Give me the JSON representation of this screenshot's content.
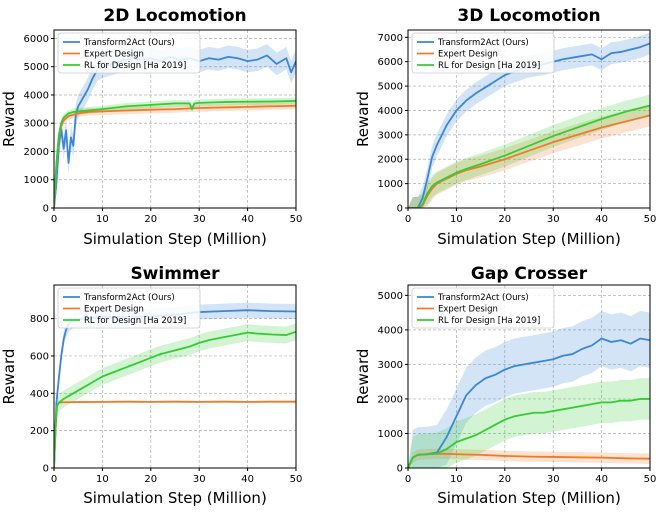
{
  "chart_data": [
    {
      "type": "line",
      "title": "2D Locomotion",
      "xlabel": "Simulation Step (Million)",
      "ylabel": "Reward",
      "xlim": [
        0,
        50
      ],
      "ylim": [
        0,
        6300
      ],
      "xticks": [
        0,
        10,
        20,
        30,
        40,
        50
      ],
      "yticks": [
        0,
        1000,
        2000,
        3000,
        4000,
        5000,
        6000
      ],
      "grid": true,
      "legend_position": "top-left",
      "series": [
        {
          "name": "Transform2Act (Ours)",
          "color": "#3a86d9",
          "band": 400,
          "x": [
            0,
            0.5,
            1,
            1.5,
            2,
            2.5,
            3,
            3.5,
            4,
            4.5,
            5,
            6,
            7,
            8,
            9,
            10,
            12,
            14,
            16,
            18,
            20,
            22,
            24,
            26,
            28,
            30,
            32,
            34,
            36,
            38,
            40,
            42,
            44,
            46,
            48,
            49,
            50
          ],
          "y": [
            0,
            900,
            2200,
            2800,
            2100,
            2750,
            1600,
            2500,
            2200,
            3300,
            3600,
            3900,
            4200,
            4600,
            4900,
            5000,
            5100,
            5200,
            5300,
            5250,
            5300,
            5200,
            5350,
            5250,
            5300,
            5200,
            5300,
            5250,
            5350,
            5300,
            5200,
            5250,
            5400,
            5100,
            5300,
            4800,
            5200
          ]
        },
        {
          "name": "Expert Design",
          "color": "#f07a2a",
          "band": 130,
          "x": [
            0,
            0.5,
            1,
            1.5,
            2,
            3,
            4,
            5,
            7,
            10,
            15,
            20,
            25,
            30,
            35,
            40,
            45,
            50
          ],
          "y": [
            0,
            1500,
            2500,
            2900,
            3100,
            3250,
            3300,
            3350,
            3400,
            3420,
            3450,
            3480,
            3500,
            3540,
            3560,
            3580,
            3600,
            3620
          ]
        },
        {
          "name": "RL for Design [Ha 2019]",
          "color": "#33cc33",
          "band": 120,
          "x": [
            0,
            0.5,
            1,
            1.5,
            2,
            3,
            4,
            5,
            7,
            10,
            15,
            20,
            25,
            28,
            28.5,
            29,
            30,
            35,
            40,
            45,
            50
          ],
          "y": [
            0,
            1600,
            2600,
            3000,
            3200,
            3350,
            3400,
            3420,
            3450,
            3500,
            3600,
            3650,
            3700,
            3700,
            3500,
            3700,
            3720,
            3750,
            3760,
            3770,
            3790
          ]
        }
      ]
    },
    {
      "type": "line",
      "title": "3D Locomotion",
      "xlabel": "Simulation Step (Million)",
      "ylabel": "Reward",
      "xlim": [
        0,
        50
      ],
      "ylim": [
        0,
        7300
      ],
      "xticks": [
        0,
        10,
        20,
        30,
        40,
        50
      ],
      "yticks": [
        0,
        1000,
        2000,
        3000,
        4000,
        5000,
        6000,
        7000
      ],
      "grid": true,
      "legend_position": "top-left",
      "series": [
        {
          "name": "Transform2Act (Ours)",
          "color": "#3a86d9",
          "band": 450,
          "x": [
            0,
            1,
            2,
            3,
            4,
            5,
            6,
            7,
            8,
            10,
            12,
            14,
            16,
            18,
            20,
            22,
            25,
            28,
            30,
            32,
            35,
            38,
            40,
            42,
            44,
            46,
            48,
            50
          ],
          "y": [
            0,
            0,
            0,
            400,
            1200,
            2100,
            2600,
            3000,
            3400,
            4000,
            4400,
            4700,
            4950,
            5200,
            5450,
            5600,
            5800,
            5900,
            6000,
            6100,
            6200,
            6300,
            6100,
            6350,
            6400,
            6500,
            6600,
            6750
          ]
        },
        {
          "name": "Expert Design",
          "color": "#f07a2a",
          "band": 450,
          "x": [
            0,
            1,
            2,
            3,
            4,
            5,
            6,
            8,
            10,
            12,
            15,
            20,
            25,
            30,
            35,
            40,
            45,
            50
          ],
          "y": [
            0,
            0,
            0,
            100,
            500,
            800,
            1000,
            1200,
            1400,
            1550,
            1700,
            2000,
            2350,
            2700,
            3000,
            3300,
            3550,
            3800
          ]
        },
        {
          "name": "RL for Design [Ha 2019]",
          "color": "#33cc33",
          "band": 450,
          "x": [
            0,
            1,
            2,
            3,
            4,
            5,
            6,
            8,
            10,
            12,
            15,
            20,
            25,
            30,
            35,
            40,
            45,
            50
          ],
          "y": [
            0,
            0,
            0,
            150,
            600,
            900,
            1050,
            1250,
            1450,
            1600,
            1800,
            2150,
            2550,
            2950,
            3300,
            3650,
            3950,
            4200
          ]
        }
      ]
    },
    {
      "type": "line",
      "title": "Swimmer",
      "xlabel": "Simulation Step (Million)",
      "ylabel": "Reward",
      "xlim": [
        0,
        50
      ],
      "ylim": [
        0,
        980
      ],
      "xticks": [
        0,
        10,
        20,
        30,
        40,
        50
      ],
      "yticks": [
        0,
        200,
        400,
        600,
        800
      ],
      "grid": true,
      "legend_position": "top-left",
      "series": [
        {
          "name": "Transform2Act (Ours)",
          "color": "#3a86d9",
          "band": 40,
          "x": [
            0,
            0.5,
            1,
            1.5,
            2,
            2.5,
            3,
            4,
            6,
            8,
            10,
            15,
            20,
            25,
            28,
            30,
            35,
            40,
            45,
            50
          ],
          "y": [
            0,
            350,
            480,
            600,
            690,
            740,
            770,
            790,
            800,
            805,
            808,
            810,
            812,
            820,
            830,
            835,
            840,
            845,
            840,
            838
          ]
        },
        {
          "name": "Expert Design",
          "color": "#f07a2a",
          "band": 5,
          "x": [
            0,
            0.3,
            0.6,
            1,
            2,
            5,
            10,
            15,
            20,
            25,
            30,
            35,
            40,
            45,
            50
          ],
          "y": [
            0,
            200,
            330,
            350,
            352,
            353,
            354,
            355,
            354,
            355,
            354,
            355,
            354,
            355,
            355
          ]
        },
        {
          "name": "RL for Design [Ha 2019]",
          "color": "#33cc33",
          "band": 45,
          "x": [
            0,
            0.3,
            0.6,
            1,
            2,
            4,
            6,
            8,
            10,
            12,
            15,
            18,
            20,
            22,
            25,
            28,
            30,
            32,
            35,
            38,
            40,
            42,
            45,
            48,
            50
          ],
          "y": [
            0,
            200,
            330,
            350,
            370,
            400,
            430,
            460,
            490,
            510,
            540,
            570,
            590,
            610,
            630,
            650,
            670,
            685,
            700,
            715,
            725,
            720,
            715,
            712,
            730
          ]
        }
      ]
    },
    {
      "type": "line",
      "title": "Gap Crosser",
      "xlabel": "Simulation Step (Million)",
      "ylabel": "Reward",
      "xlim": [
        0,
        50
      ],
      "ylim": [
        0,
        5300
      ],
      "xticks": [
        0,
        10,
        20,
        30,
        40,
        50
      ],
      "yticks": [
        0,
        1000,
        2000,
        3000,
        4000,
        5000
      ],
      "grid": true,
      "legend_position": "top-left",
      "series": [
        {
          "name": "Transform2Act (Ours)",
          "color": "#3a86d9",
          "band": 800,
          "x": [
            0,
            1,
            2,
            4,
            6,
            8,
            10,
            12,
            14,
            16,
            18,
            20,
            22,
            24,
            26,
            28,
            30,
            32,
            34,
            36,
            38,
            40,
            42,
            44,
            46,
            48,
            50
          ],
          "y": [
            0,
            300,
            380,
            400,
            450,
            900,
            1500,
            2100,
            2400,
            2600,
            2700,
            2850,
            2950,
            3000,
            3050,
            3100,
            3150,
            3250,
            3300,
            3450,
            3550,
            3750,
            3650,
            3700,
            3600,
            3750,
            3700
          ]
        },
        {
          "name": "Expert Design",
          "color": "#f07a2a",
          "band": 150,
          "x": [
            0,
            1,
            2,
            4,
            6,
            8,
            10,
            12,
            15,
            20,
            25,
            30,
            35,
            40,
            45,
            50
          ],
          "y": [
            0,
            300,
            380,
            400,
            410,
            410,
            400,
            390,
            380,
            350,
            330,
            320,
            310,
            300,
            280,
            270
          ]
        },
        {
          "name": "RL for Design [Ha 2019]",
          "color": "#33cc33",
          "band": 600,
          "x": [
            0,
            1,
            2,
            4,
            6,
            8,
            10,
            12,
            14,
            16,
            18,
            20,
            22,
            24,
            26,
            28,
            30,
            32,
            34,
            36,
            38,
            40,
            42,
            44,
            46,
            48,
            50
          ],
          "y": [
            0,
            300,
            380,
            400,
            420,
            550,
            750,
            850,
            950,
            1100,
            1250,
            1400,
            1500,
            1550,
            1600,
            1600,
            1650,
            1700,
            1750,
            1800,
            1850,
            1900,
            1900,
            1950,
            1950,
            2000,
            2000
          ]
        }
      ]
    }
  ]
}
